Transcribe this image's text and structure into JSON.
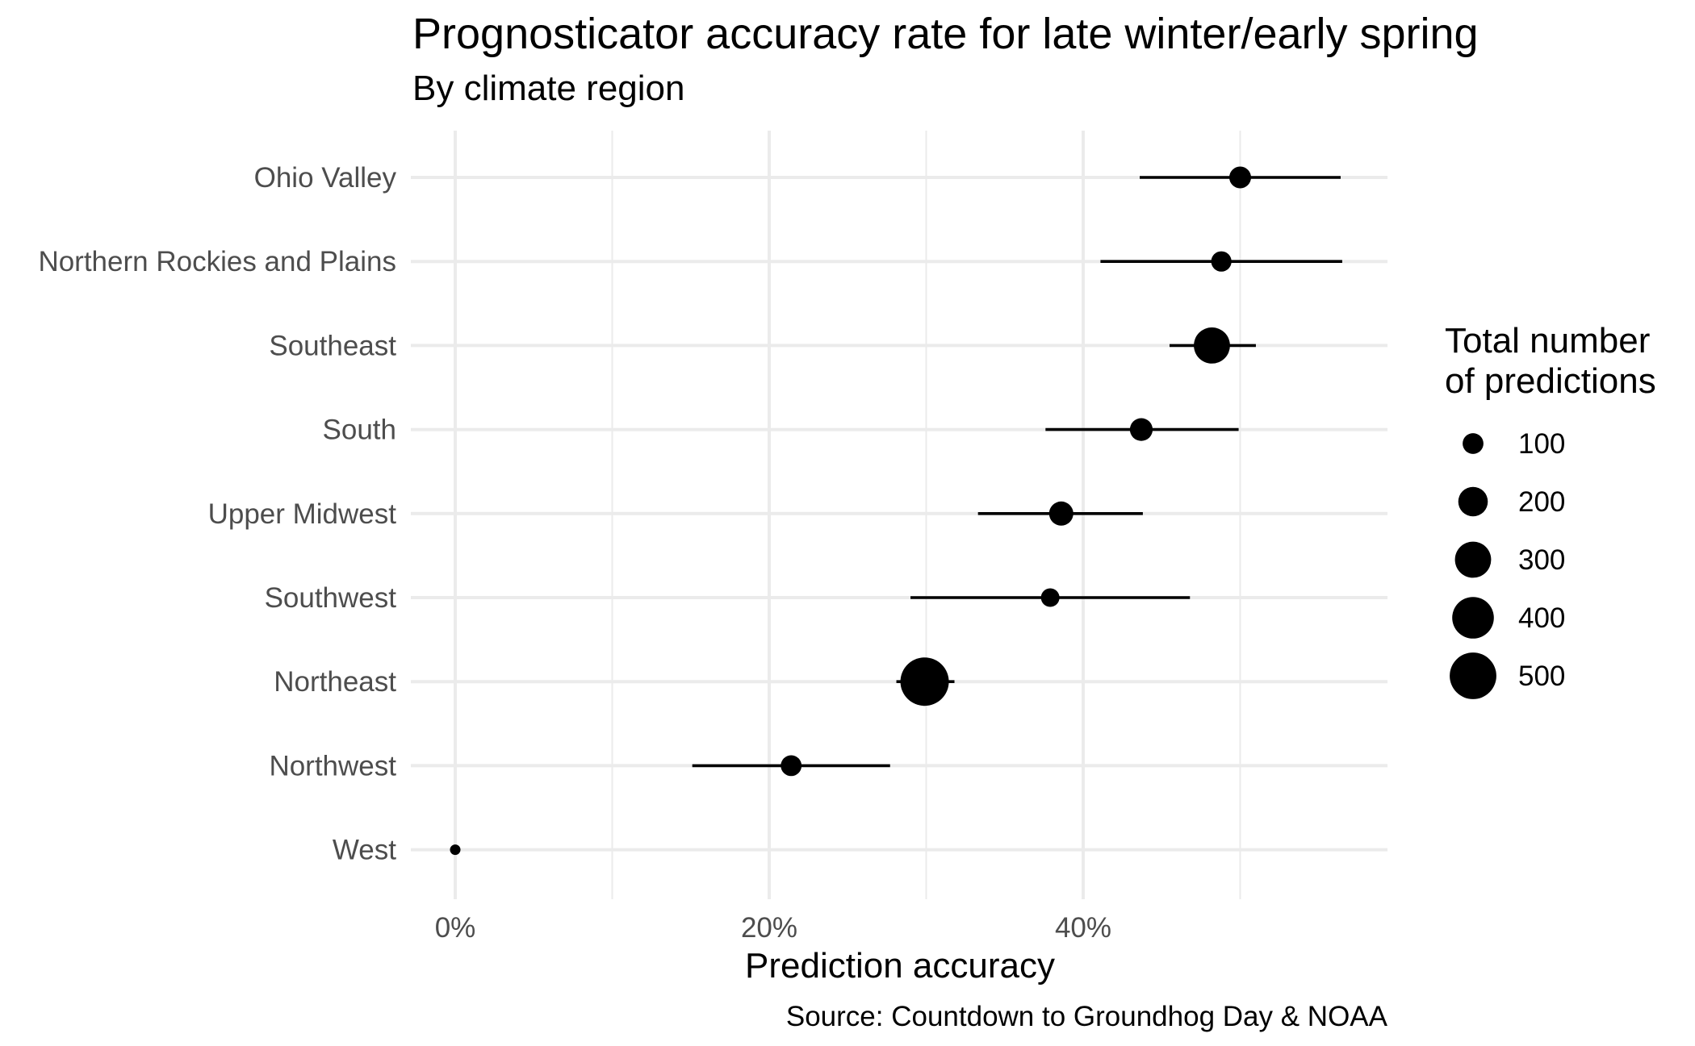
{
  "chart_data": {
    "type": "scatter",
    "title": "Prognosticator accuracy rate for late winter/early spring",
    "subtitle": "By climate region",
    "xlabel": "Prediction accuracy",
    "ylabel": "",
    "caption": "Source: Countdown to Groundhog Day & NOAA",
    "xlim": [
      -0.03,
      0.595
    ],
    "x_ticks": [
      0,
      0.2,
      0.4
    ],
    "x_tick_labels": [
      "0%",
      "20%",
      "40%"
    ],
    "grid": true,
    "categories": [
      "Ohio Valley",
      "Northern Rockies and Plains",
      "Southeast",
      "South",
      "Upper Midwest",
      "Southwest",
      "Northeast",
      "Northwest",
      "West"
    ],
    "series": [
      {
        "values": [
          0.5,
          0.488,
          0.482,
          0.437,
          0.386,
          0.379,
          0.299,
          0.214,
          0.0
        ],
        "lower": [
          0.436,
          0.411,
          0.455,
          0.376,
          0.333,
          0.29,
          0.281,
          0.151,
          0.0
        ],
        "upper": [
          0.564,
          0.565,
          0.51,
          0.499,
          0.438,
          0.468,
          0.318,
          0.277,
          0.0
        ],
        "size": [
          110,
          95,
          300,
          120,
          135,
          80,
          540,
          100,
          25
        ]
      }
    ],
    "legend": {
      "title_lines": [
        "Total number",
        "of predictions"
      ],
      "position": "right",
      "sizes": [
        100,
        200,
        300,
        400,
        500
      ],
      "labels": [
        "100",
        "200",
        "300",
        "400",
        "500"
      ]
    }
  }
}
